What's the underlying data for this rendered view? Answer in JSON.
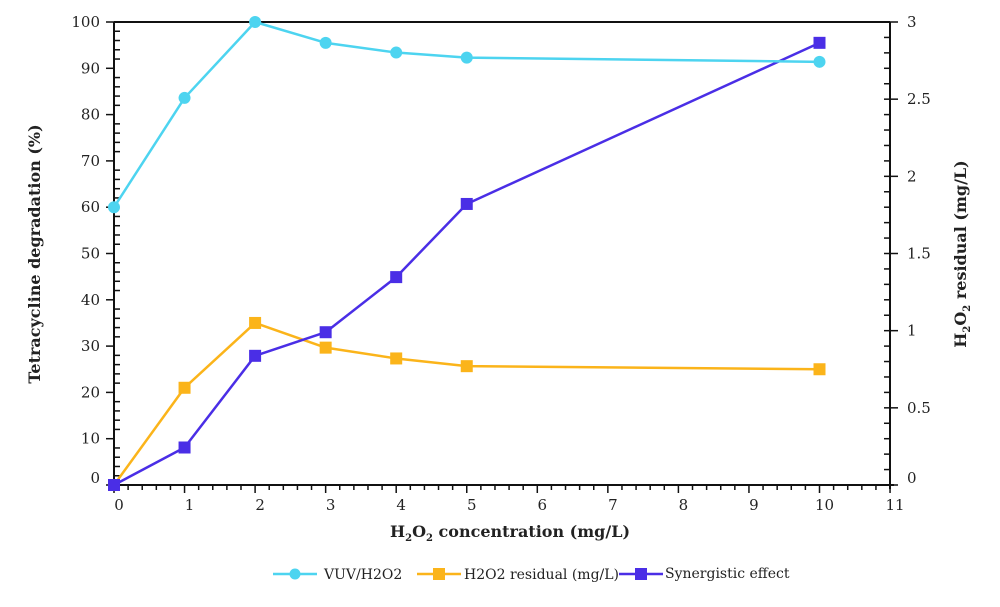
{
  "chart_data": {
    "type": "line",
    "title": "",
    "xlabel": "H2O2 concentration (mg/L)",
    "xlabel_parts": {
      "pre": "H",
      "sub1": "2",
      "mid": "O",
      "sub2": "2",
      "post": " concentration (mg/L)"
    },
    "ylabel": "Tetracycline degradation (%)",
    "y2label": "H2O2 residual (mg/L)",
    "y2label_parts": {
      "pre": "H",
      "sub1": "2",
      "mid": "O",
      "sub2": "2",
      "post": " residual (mg/L)"
    },
    "xlim": [
      -0.05,
      11
    ],
    "ylim": [
      0,
      100
    ],
    "y2lim": [
      0,
      3
    ],
    "x_ticks": [
      "0",
      "1",
      "2",
      "3",
      "4",
      "5",
      "6",
      "7",
      "8",
      "9",
      "10",
      "11"
    ],
    "x_tick_values": [
      0,
      1,
      2,
      3,
      4,
      5,
      6,
      7,
      8,
      9,
      10,
      11
    ],
    "y_ticks": [
      "0",
      "10",
      "20",
      "30",
      "40",
      "50",
      "60",
      "70",
      "80",
      "90",
      "100"
    ],
    "y_tick_values": [
      0,
      10,
      20,
      30,
      40,
      50,
      60,
      70,
      80,
      90,
      100
    ],
    "y2_ticks": [
      "0",
      "0.5",
      "1",
      "1.5",
      "2",
      "2.5",
      "3"
    ],
    "y2_tick_values": [
      0,
      0.5,
      1,
      1.5,
      2,
      2.5,
      3
    ],
    "grid": false,
    "legend_position": "bottom",
    "x": [
      0,
      1,
      2,
      3,
      4,
      5,
      10
    ],
    "series": [
      {
        "name": "VUV/H2O2",
        "axis": "left",
        "marker": "circle",
        "color": "#4dd4f0",
        "values": [
          60,
          83.6,
          100,
          95.5,
          93.4,
          92.3,
          91.4
        ]
      },
      {
        "name": "H2O2 residual (mg/L)",
        "axis": "right",
        "marker": "square",
        "color": "#fbb41a",
        "values": [
          0,
          0.63,
          1.05,
          0.89,
          0.82,
          0.77,
          0.75
        ]
      },
      {
        "name": "Synergistic effect",
        "axis": "left",
        "marker": "square",
        "color": "#4a2ee6",
        "values": [
          0,
          8.1,
          27.9,
          33.0,
          44.9,
          60.7,
          95.5
        ]
      }
    ]
  }
}
